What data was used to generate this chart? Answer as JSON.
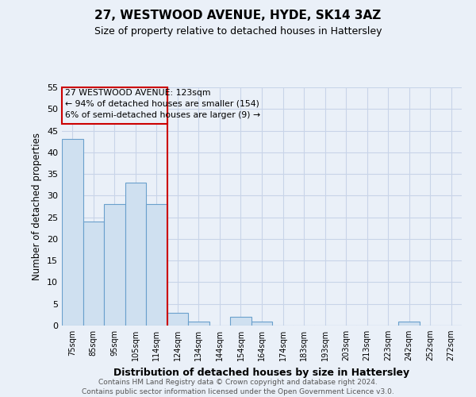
{
  "title1": "27, WESTWOOD AVENUE, HYDE, SK14 3AZ",
  "title2": "Size of property relative to detached houses in Hattersley",
  "xlabel": "Distribution of detached houses by size in Hattersley",
  "ylabel": "Number of detached properties",
  "bar_heights": [
    43,
    24,
    28,
    33,
    28,
    3,
    1,
    0,
    2,
    1,
    0,
    0,
    0,
    0,
    0,
    0,
    1,
    0,
    0
  ],
  "x_labels": [
    "75sqm",
    "85sqm",
    "95sqm",
    "105sqm",
    "114sqm",
    "124sqm",
    "134sqm",
    "144sqm",
    "154sqm",
    "164sqm",
    "174sqm",
    "183sqm",
    "193sqm",
    "203sqm",
    "213sqm",
    "223sqm",
    "242sqm",
    "252sqm",
    "272sqm"
  ],
  "bar_color": "#cfe0f0",
  "bar_edge_color": "#6aa0cc",
  "vline_color": "#cc0000",
  "vline_x_index": 5,
  "annotation_box_text_line1": "27 WESTWOOD AVENUE: 123sqm",
  "annotation_box_text_line2": "← 94% of detached houses are smaller (154)",
  "annotation_box_text_line3": "6% of semi-detached houses are larger (9) →",
  "annotation_box_color": "#cc0000",
  "ylim": [
    0,
    55
  ],
  "yticks": [
    0,
    5,
    10,
    15,
    20,
    25,
    30,
    35,
    40,
    45,
    50,
    55
  ],
  "grid_color": "#c8d4e8",
  "background_color": "#eaf0f8",
  "footer1": "Contains HM Land Registry data © Crown copyright and database right 2024.",
  "footer2": "Contains public sector information licensed under the Open Government Licence v3.0."
}
